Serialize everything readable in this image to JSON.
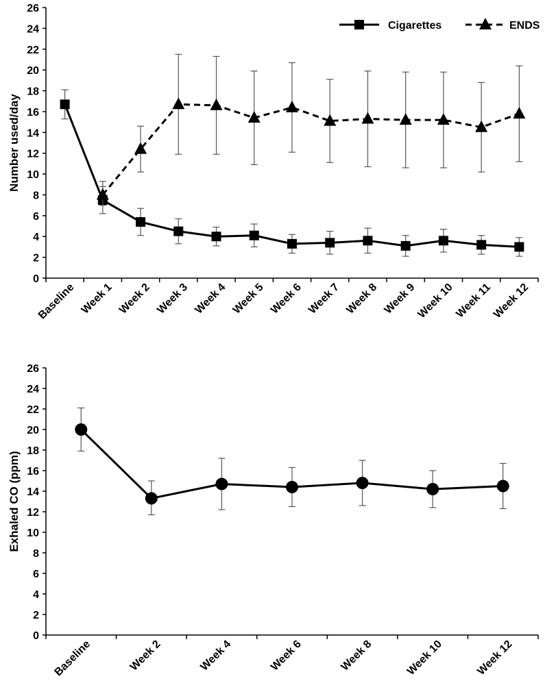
{
  "chart_data": [
    {
      "type": "line",
      "ylabel": "Number used/day",
      "xlabel": "",
      "ylim": [
        0,
        26
      ],
      "yticks": [
        "0",
        "2",
        "4",
        "6",
        "8",
        "10",
        "12",
        "14",
        "16",
        "18",
        "20",
        "22",
        "24",
        "26"
      ],
      "categories": [
        "Baseline",
        "Week 1",
        "Week 2",
        "Week 3",
        "Week 4",
        "Week 5",
        "Week 6",
        "Week 7",
        "Week 8",
        "Week 9",
        "Week 10",
        "Week 11",
        "Week 12"
      ],
      "legend_position": "top-right",
      "series": [
        {
          "name": "Cigarettes",
          "style": "solid",
          "marker": "square",
          "values": [
            16.7,
            7.5,
            5.4,
            4.5,
            4.0,
            4.1,
            3.3,
            3.4,
            3.6,
            3.1,
            3.6,
            3.2,
            3.0
          ],
          "error_low": [
            15.3,
            6.2,
            4.1,
            3.3,
            3.1,
            3.0,
            2.4,
            2.3,
            2.4,
            2.1,
            2.5,
            2.3,
            2.1
          ],
          "error_high": [
            18.1,
            8.8,
            6.7,
            5.7,
            4.9,
            5.2,
            4.2,
            4.5,
            4.8,
            4.1,
            4.7,
            4.1,
            3.9
          ]
        },
        {
          "name": "ENDS",
          "style": "dashed",
          "marker": "triangle",
          "values": [
            null,
            8.0,
            12.4,
            16.7,
            16.6,
            15.4,
            16.4,
            15.1,
            15.3,
            15.2,
            15.2,
            14.5,
            15.8
          ],
          "error_low": [
            null,
            7.0,
            10.2,
            11.9,
            11.9,
            10.9,
            12.1,
            11.1,
            10.7,
            10.6,
            10.6,
            10.2,
            11.2
          ],
          "error_high": [
            null,
            9.3,
            14.6,
            21.5,
            21.3,
            19.9,
            20.7,
            19.1,
            19.9,
            19.8,
            19.8,
            18.8,
            20.4
          ]
        }
      ]
    },
    {
      "type": "line",
      "ylabel": "Exhaled CO (ppm)",
      "xlabel": "",
      "ylim": [
        0,
        26
      ],
      "yticks": [
        "0",
        "2",
        "4",
        "6",
        "8",
        "10",
        "12",
        "14",
        "16",
        "18",
        "20",
        "22",
        "24",
        "26"
      ],
      "categories": [
        "Baseline",
        "Week 2",
        "Week 4",
        "Week 6",
        "Week 8",
        "Week 10",
        "Week 12"
      ],
      "series": [
        {
          "name": "Exhaled CO",
          "style": "solid",
          "marker": "circle",
          "values": [
            20.0,
            13.3,
            14.7,
            14.4,
            14.8,
            14.2,
            14.5
          ],
          "error_low": [
            17.9,
            11.7,
            12.2,
            12.5,
            12.6,
            12.4,
            12.3
          ],
          "error_high": [
            22.1,
            15.0,
            17.2,
            16.3,
            17.0,
            16.0,
            16.7
          ]
        }
      ]
    }
  ]
}
